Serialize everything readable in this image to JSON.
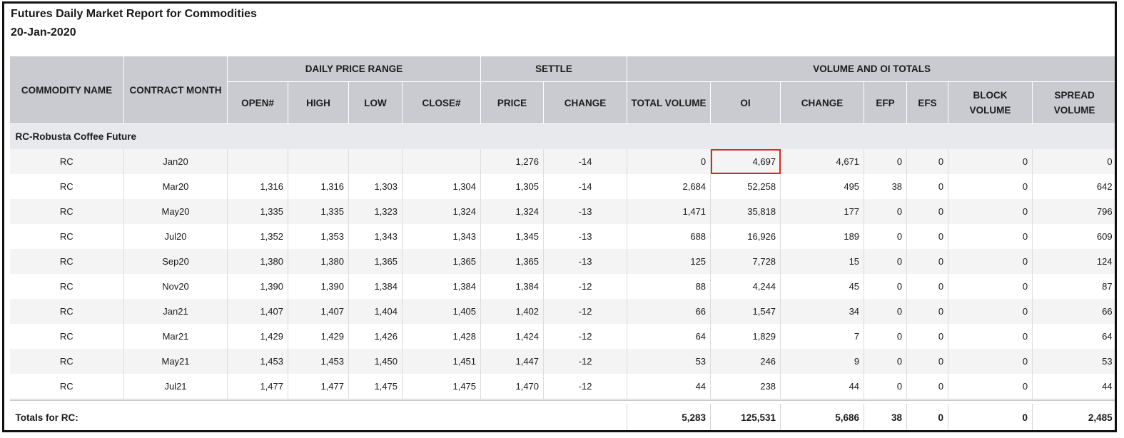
{
  "report": {
    "title": "Futures Daily Market Report for Commodities",
    "date": "20-Jan-2020"
  },
  "headers": {
    "commodity_name": "COMMODITY NAME",
    "contract_month": "CONTRACT MONTH",
    "daily_price_range": "DAILY PRICE RANGE",
    "settle": "SETTLE",
    "volume_oi_totals": "VOLUME AND OI TOTALS",
    "open": "OPEN#",
    "high": "HIGH",
    "low": "LOW",
    "close": "CLOSE#",
    "price": "PRICE",
    "change": "CHANGE",
    "total_volume": "TOTAL VOLUME",
    "oi": "OI",
    "oi_change": "CHANGE",
    "efp": "EFP",
    "efs": "EFS",
    "block_volume": "BLOCK VOLUME",
    "spread_volume": "SPREAD VOLUME"
  },
  "group_label": "RC-Robusta Coffee Future",
  "rows": [
    {
      "name": "RC",
      "month": "Jan20",
      "open": "",
      "high": "",
      "low": "",
      "close": "",
      "price": "1,276",
      "change": "-14",
      "total_volume": "0",
      "oi": "4,697",
      "oi_change": "4,671",
      "efp": "0",
      "efs": "0",
      "block": "0",
      "spread": "0",
      "highlight_oi": true
    },
    {
      "name": "RC",
      "month": "Mar20",
      "open": "1,316",
      "high": "1,316",
      "low": "1,303",
      "close": "1,304",
      "price": "1,305",
      "change": "-14",
      "total_volume": "2,684",
      "oi": "52,258",
      "oi_change": "495",
      "efp": "38",
      "efs": "0",
      "block": "0",
      "spread": "642"
    },
    {
      "name": "RC",
      "month": "May20",
      "open": "1,335",
      "high": "1,335",
      "low": "1,323",
      "close": "1,324",
      "price": "1,324",
      "change": "-13",
      "total_volume": "1,471",
      "oi": "35,818",
      "oi_change": "177",
      "efp": "0",
      "efs": "0",
      "block": "0",
      "spread": "796"
    },
    {
      "name": "RC",
      "month": "Jul20",
      "open": "1,352",
      "high": "1,353",
      "low": "1,343",
      "close": "1,343",
      "price": "1,345",
      "change": "-13",
      "total_volume": "688",
      "oi": "16,926",
      "oi_change": "189",
      "efp": "0",
      "efs": "0",
      "block": "0",
      "spread": "609"
    },
    {
      "name": "RC",
      "month": "Sep20",
      "open": "1,380",
      "high": "1,380",
      "low": "1,365",
      "close": "1,365",
      "price": "1,365",
      "change": "-13",
      "total_volume": "125",
      "oi": "7,728",
      "oi_change": "15",
      "efp": "0",
      "efs": "0",
      "block": "0",
      "spread": "124"
    },
    {
      "name": "RC",
      "month": "Nov20",
      "open": "1,390",
      "high": "1,390",
      "low": "1,384",
      "close": "1,384",
      "price": "1,384",
      "change": "-12",
      "total_volume": "88",
      "oi": "4,244",
      "oi_change": "45",
      "efp": "0",
      "efs": "0",
      "block": "0",
      "spread": "87"
    },
    {
      "name": "RC",
      "month": "Jan21",
      "open": "1,407",
      "high": "1,407",
      "low": "1,404",
      "close": "1,405",
      "price": "1,402",
      "change": "-12",
      "total_volume": "66",
      "oi": "1,547",
      "oi_change": "34",
      "efp": "0",
      "efs": "0",
      "block": "0",
      "spread": "66"
    },
    {
      "name": "RC",
      "month": "Mar21",
      "open": "1,429",
      "high": "1,429",
      "low": "1,426",
      "close": "1,428",
      "price": "1,424",
      "change": "-12",
      "total_volume": "64",
      "oi": "1,829",
      "oi_change": "7",
      "efp": "0",
      "efs": "0",
      "block": "0",
      "spread": "64"
    },
    {
      "name": "RC",
      "month": "May21",
      "open": "1,453",
      "high": "1,453",
      "low": "1,450",
      "close": "1,451",
      "price": "1,447",
      "change": "-12",
      "total_volume": "53",
      "oi": "246",
      "oi_change": "9",
      "efp": "0",
      "efs": "0",
      "block": "0",
      "spread": "53"
    },
    {
      "name": "RC",
      "month": "Jul21",
      "open": "1,477",
      "high": "1,477",
      "low": "1,475",
      "close": "1,475",
      "price": "1,470",
      "change": "-12",
      "total_volume": "44",
      "oi": "238",
      "oi_change": "44",
      "efp": "0",
      "efs": "0",
      "block": "0",
      "spread": "44"
    }
  ],
  "totals": {
    "label": "Totals for RC:",
    "total_volume": "5,283",
    "oi": "125,531",
    "oi_change": "5,686",
    "efp": "38",
    "efs": "0",
    "block": "0",
    "spread": "2,485"
  },
  "colors": {
    "header_bg": "#c9cbd0",
    "group_bg": "#e8e9ec",
    "highlight": "#e02424"
  }
}
